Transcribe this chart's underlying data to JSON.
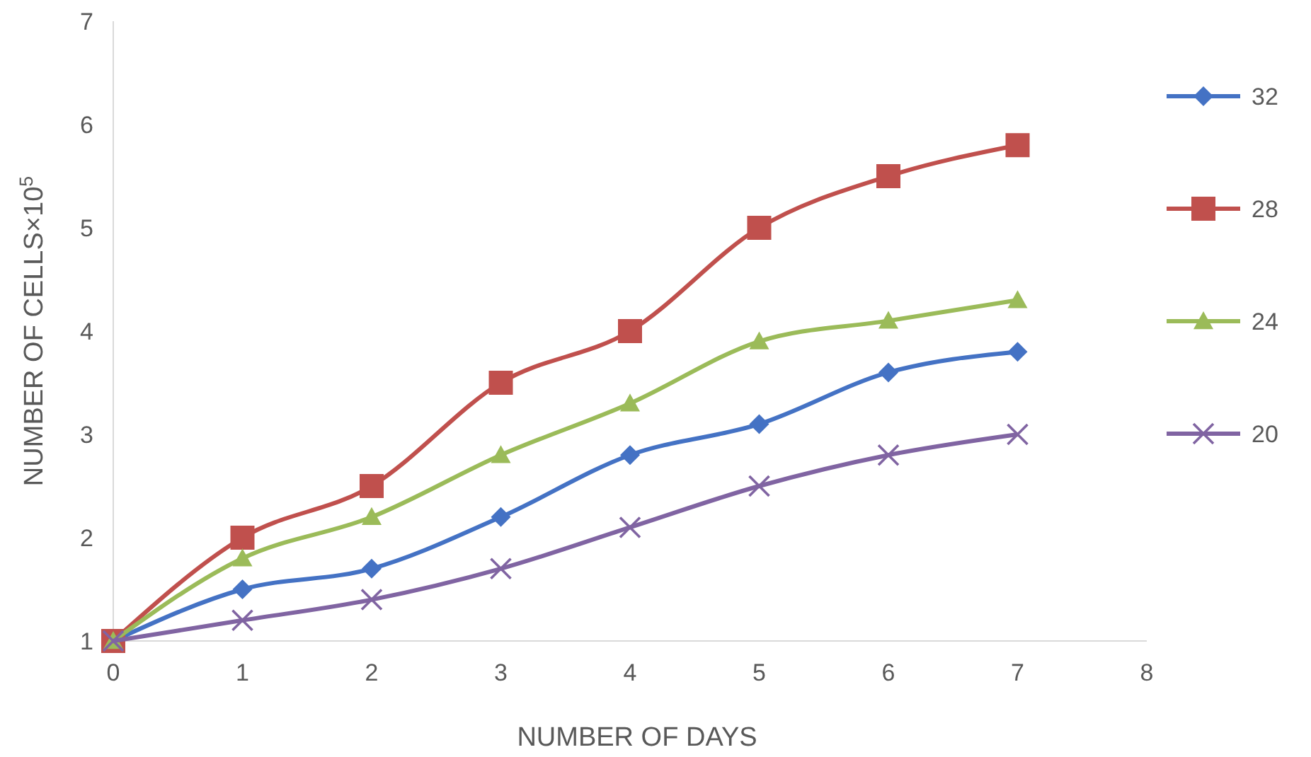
{
  "chart_data": {
    "type": "line",
    "xlabel": "NUMBER OF DAYS",
    "ylabel": "NUMBER OF CELLS×10$^{5}$",
    "x": [
      0,
      1,
      2,
      3,
      4,
      5,
      6,
      7
    ],
    "xlim": [
      0,
      8
    ],
    "xticks": [
      0,
      1,
      2,
      3,
      4,
      5,
      6,
      7,
      8
    ],
    "ylim": [
      1,
      7
    ],
    "yticks": [
      1,
      2,
      3,
      4,
      5,
      6,
      7
    ],
    "grid": false,
    "legend": "right",
    "series": [
      {
        "name": "32",
        "color": "#4472c4",
        "marker": "diamond",
        "values": [
          1,
          1.5,
          1.7,
          2.2,
          2.8,
          3.1,
          3.6,
          3.8
        ]
      },
      {
        "name": "28",
        "color": "#c0504d",
        "marker": "square",
        "values": [
          1,
          2.0,
          2.5,
          3.5,
          4.0,
          5.0,
          5.5,
          5.8
        ]
      },
      {
        "name": "24",
        "color": "#9bbb59",
        "marker": "triangle",
        "values": [
          1,
          1.8,
          2.2,
          2.8,
          3.3,
          3.9,
          4.1,
          4.3
        ]
      },
      {
        "name": "20",
        "color": "#8064a2",
        "marker": "cross",
        "values": [
          1,
          1.2,
          1.4,
          1.7,
          2.1,
          2.5,
          2.8,
          3.0
        ]
      }
    ]
  }
}
